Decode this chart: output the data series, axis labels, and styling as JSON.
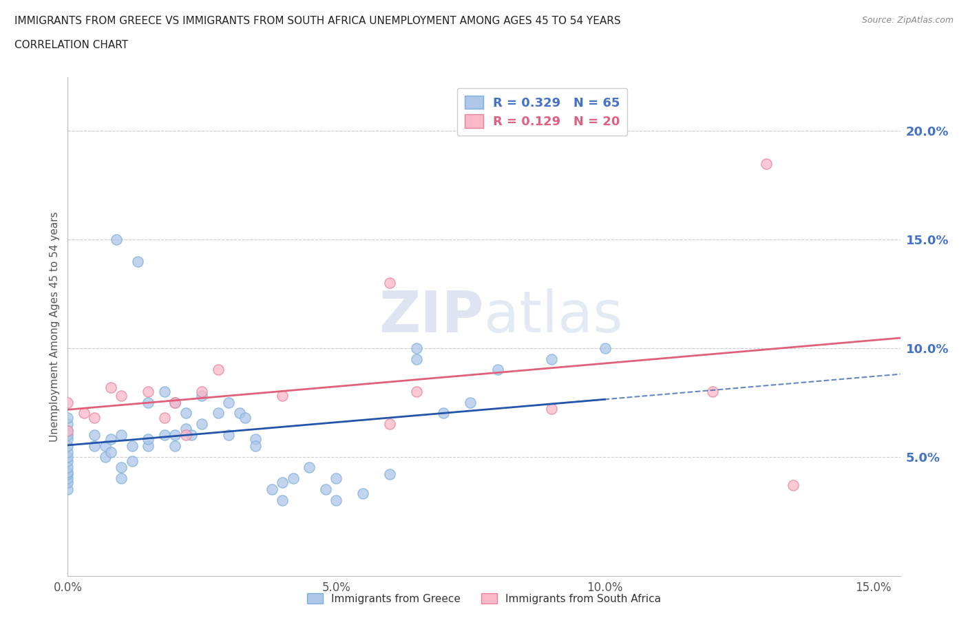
{
  "title_line1": "IMMIGRANTS FROM GREECE VS IMMIGRANTS FROM SOUTH AFRICA UNEMPLOYMENT AMONG AGES 45 TO 54 YEARS",
  "title_line2": "CORRELATION CHART",
  "source_text": "Source: ZipAtlas.com",
  "ylabel": "Unemployment Among Ages 45 to 54 years",
  "xlim": [
    0.0,
    0.155
  ],
  "ylim": [
    -0.005,
    0.225
  ],
  "xtick_labels": [
    "0.0%",
    "5.0%",
    "10.0%",
    "15.0%"
  ],
  "xtick_vals": [
    0.0,
    0.05,
    0.1,
    0.15
  ],
  "ytick_labels": [
    "5.0%",
    "10.0%",
    "15.0%",
    "20.0%"
  ],
  "ytick_vals": [
    0.05,
    0.1,
    0.15,
    0.2
  ],
  "r_greece": 0.329,
  "n_greece": 65,
  "r_south_africa": 0.129,
  "n_south_africa": 20,
  "color_greece_fill": "#aec6e8",
  "color_greece_edge": "#7aafdb",
  "color_south_africa_fill": "#f9b8c8",
  "color_south_africa_edge": "#e88099",
  "color_greece_line": "#2255aa",
  "color_south_africa_line": "#e0607a",
  "watermark_color": "#d0daea",
  "greece_x": [
    0.0,
    0.0,
    0.0,
    0.0,
    0.0,
    0.0,
    0.0,
    0.0,
    0.0,
    0.0,
    0.0,
    0.0,
    0.0,
    0.0,
    0.0,
    0.005,
    0.005,
    0.007,
    0.007,
    0.008,
    0.008,
    0.009,
    0.01,
    0.01,
    0.01,
    0.012,
    0.012,
    0.013,
    0.015,
    0.015,
    0.015,
    0.018,
    0.018,
    0.02,
    0.02,
    0.02,
    0.022,
    0.022,
    0.023,
    0.025,
    0.025,
    0.028,
    0.03,
    0.03,
    0.032,
    0.033,
    0.035,
    0.035,
    0.038,
    0.04,
    0.04,
    0.042,
    0.045,
    0.048,
    0.05,
    0.05,
    0.055,
    0.06,
    0.065,
    0.065,
    0.07,
    0.075,
    0.08,
    0.09,
    0.1
  ],
  "greece_y": [
    0.035,
    0.038,
    0.04,
    0.042,
    0.043,
    0.045,
    0.048,
    0.05,
    0.052,
    0.055,
    0.058,
    0.06,
    0.062,
    0.065,
    0.068,
    0.055,
    0.06,
    0.05,
    0.055,
    0.052,
    0.058,
    0.15,
    0.04,
    0.045,
    0.06,
    0.048,
    0.055,
    0.14,
    0.055,
    0.058,
    0.075,
    0.06,
    0.08,
    0.055,
    0.06,
    0.075,
    0.063,
    0.07,
    0.06,
    0.065,
    0.078,
    0.07,
    0.06,
    0.075,
    0.07,
    0.068,
    0.058,
    0.055,
    0.035,
    0.03,
    0.038,
    0.04,
    0.045,
    0.035,
    0.04,
    0.03,
    0.033,
    0.042,
    0.095,
    0.1,
    0.07,
    0.075,
    0.09,
    0.095,
    0.1
  ],
  "sa_x": [
    0.0,
    0.0,
    0.003,
    0.005,
    0.008,
    0.01,
    0.015,
    0.018,
    0.02,
    0.022,
    0.025,
    0.028,
    0.04,
    0.06,
    0.06,
    0.065,
    0.09,
    0.12,
    0.13,
    0.135
  ],
  "sa_y": [
    0.062,
    0.075,
    0.07,
    0.068,
    0.082,
    0.078,
    0.08,
    0.068,
    0.075,
    0.06,
    0.08,
    0.09,
    0.078,
    0.065,
    0.13,
    0.08,
    0.072,
    0.08,
    0.185,
    0.037
  ]
}
